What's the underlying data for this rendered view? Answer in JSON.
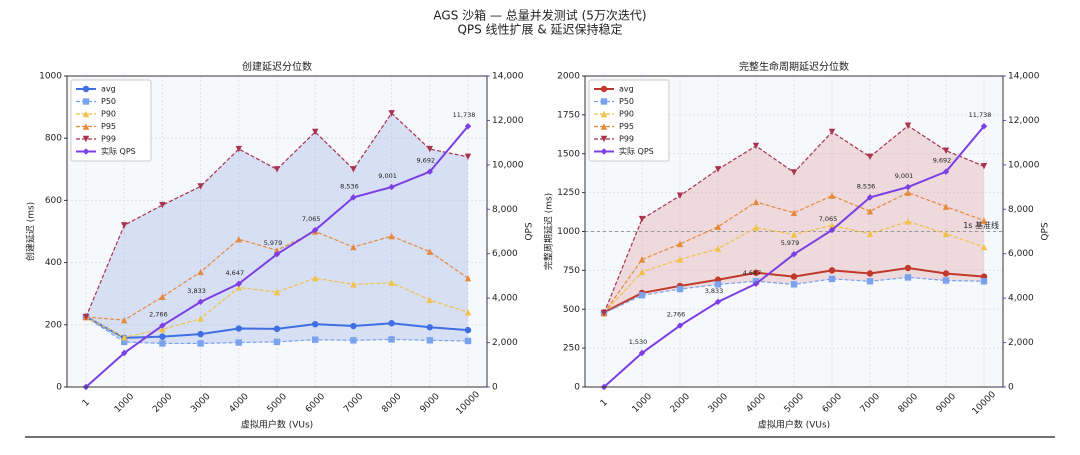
{
  "title": "AGS 沙箱 — 总量并发测试 (5万次迭代)",
  "subtitle": "QPS 线性扩展 & 延迟保持稳定",
  "chart_data": [
    {
      "type": "line",
      "title": "创建延迟分位数",
      "x_label": "虚拟用户数 (VUs)",
      "y_label": "创建延迟 (ms)",
      "y2_label": "QPS",
      "categories": [
        "1",
        "1000",
        "2000",
        "3000",
        "4000",
        "5000",
        "6000",
        "7000",
        "8000",
        "9000",
        "10000"
      ],
      "ylim": [
        0,
        1000
      ],
      "yticks": [
        0,
        200,
        400,
        600,
        800,
        1000
      ],
      "y2lim": [
        0,
        14000
      ],
      "y2ticks": [
        0,
        {
          "value": 2000,
          "label": "2,000"
        },
        {
          "value": 4000,
          "label": "4,000"
        },
        {
          "value": 6000,
          "label": "6,000"
        },
        {
          "value": 8000,
          "label": "8,000"
        },
        {
          "value": 10000,
          "label": "10,000"
        },
        {
          "value": 12000,
          "label": "12,000"
        },
        {
          "value": 14000,
          "label": "14,000"
        }
      ],
      "grid": true,
      "legend": "upper-left",
      "fill_between": [
        "P50",
        "P99"
      ],
      "fill_color": "#9fb3e6",
      "series": [
        {
          "name": "avg",
          "color": "#3f6fe0",
          "marker": "o",
          "dashed": false,
          "values": [
            226,
            158,
            162,
            170,
            188,
            187,
            202,
            196,
            205,
            192,
            183
          ]
        },
        {
          "name": "P50",
          "color": "#7aa2ee",
          "marker": "s",
          "dashed": true,
          "values": [
            225,
            145,
            140,
            140,
            143,
            145,
            152,
            150,
            153,
            150,
            148
          ]
        },
        {
          "name": "P90",
          "color": "#f0c24a",
          "marker": "^",
          "dashed": true,
          "values": [
            225,
            160,
            185,
            220,
            320,
            305,
            350,
            330,
            335,
            280,
            240
          ]
        },
        {
          "name": "P95",
          "color": "#e58a3c",
          "marker": "^",
          "dashed": true,
          "values": [
            225,
            215,
            290,
            370,
            475,
            440,
            500,
            450,
            485,
            435,
            350
          ]
        },
        {
          "name": "P99",
          "color": "#a8344e",
          "marker": "v",
          "dashed": true,
          "values": [
            225,
            520,
            585,
            645,
            765,
            700,
            820,
            700,
            880,
            765,
            740
          ]
        },
        {
          "name": "实际 QPS",
          "color": "#7b3fe4",
          "marker": "D",
          "dashed": false,
          "axis": "y2",
          "values": [
            0,
            1530,
            2766,
            3833,
            4647,
            5979,
            7065,
            8536,
            9001,
            9692,
            11738
          ],
          "value_labels": [
            null,
            null,
            "2,766",
            "3,833",
            "4,647",
            "5,979",
            "7,065",
            "8,536",
            "9,001",
            "9,692",
            "11,738"
          ]
        }
      ]
    },
    {
      "type": "line",
      "title": "完整生命周期延迟分位数",
      "x_label": "虚拟用户数 (VUs)",
      "y_label": "完整周期延迟 (ms)",
      "y2_label": "QPS",
      "categories": [
        "1",
        "1000",
        "2000",
        "3000",
        "4000",
        "5000",
        "6000",
        "7000",
        "8000",
        "9000",
        "10000"
      ],
      "ylim": [
        0,
        2000
      ],
      "yticks": [
        0,
        250,
        500,
        750,
        1000,
        1250,
        1500,
        1750,
        2000
      ],
      "y2lim": [
        0,
        14000
      ],
      "y2ticks": [
        0,
        {
          "value": 2000,
          "label": "2,000"
        },
        {
          "value": 4000,
          "label": "4,000"
        },
        {
          "value": 6000,
          "label": "6,000"
        },
        {
          "value": 8000,
          "label": "8,000"
        },
        {
          "value": 10000,
          "label": "10,000"
        },
        {
          "value": 12000,
          "label": "12,000"
        },
        {
          "value": 14000,
          "label": "14,000"
        }
      ],
      "grid": true,
      "legend": "upper-left",
      "fill_between": [
        "P50",
        "P99"
      ],
      "fill_color": "#e0a0a0",
      "hline": {
        "value": 1000,
        "label": "1s 基准线"
      },
      "series": [
        {
          "name": "avg",
          "color": "#c0392b",
          "marker": "o",
          "dashed": false,
          "values": [
            480,
            605,
            650,
            690,
            735,
            710,
            750,
            730,
            765,
            730,
            710
          ]
        },
        {
          "name": "P50",
          "color": "#7aa2ee",
          "marker": "s",
          "dashed": true,
          "values": [
            475,
            590,
            630,
            660,
            680,
            660,
            695,
            680,
            705,
            685,
            680
          ]
        },
        {
          "name": "P90",
          "color": "#f0c24a",
          "marker": "^",
          "dashed": true,
          "values": [
            475,
            740,
            820,
            890,
            1025,
            980,
            1040,
            985,
            1065,
            985,
            900
          ]
        },
        {
          "name": "P95",
          "color": "#e58a3c",
          "marker": "^",
          "dashed": true,
          "values": [
            475,
            820,
            920,
            1030,
            1190,
            1120,
            1230,
            1130,
            1250,
            1160,
            1070
          ]
        },
        {
          "name": "P99",
          "color": "#a8344e",
          "marker": "v",
          "dashed": true,
          "values": [
            475,
            1080,
            1230,
            1400,
            1550,
            1380,
            1640,
            1480,
            1680,
            1520,
            1420
          ]
        },
        {
          "name": "实际 QPS",
          "color": "#7b3fe4",
          "marker": "D",
          "dashed": false,
          "axis": "y2",
          "values": [
            0,
            1530,
            2766,
            3833,
            4647,
            5979,
            7065,
            8536,
            9001,
            9692,
            11738
          ],
          "value_labels": [
            null,
            "1,530",
            "2,766",
            "3,833",
            "4,647",
            "5,979",
            "7,065",
            "8,536",
            "9,001",
            "9,692",
            "11,738"
          ]
        }
      ]
    }
  ]
}
